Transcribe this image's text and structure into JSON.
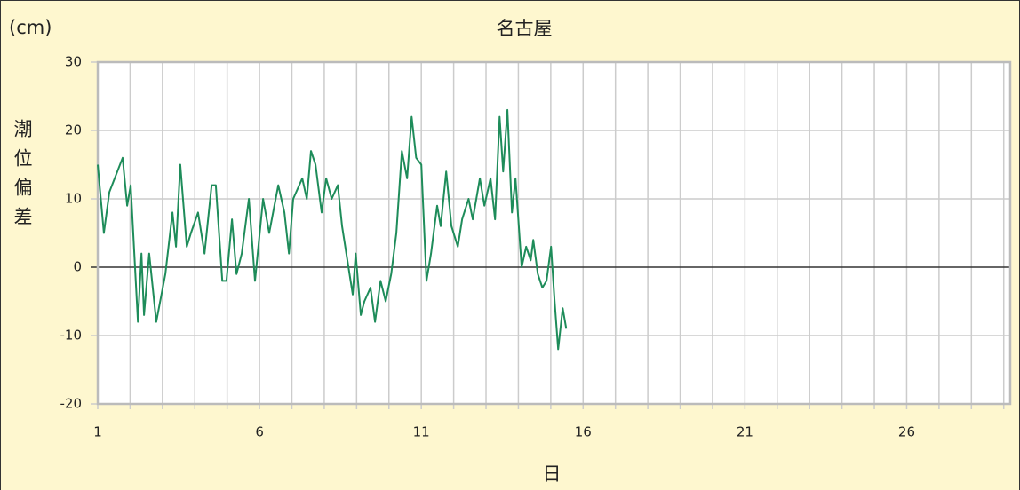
{
  "chart_data": {
    "type": "line",
    "title": "名古屋",
    "y_unit": "(cm)",
    "y_label": "潮位偏差",
    "x_label": "日",
    "x": [
      1,
      1.19,
      1.36,
      1.77,
      1.91,
      2.02,
      2.24,
      2.35,
      2.43,
      2.59,
      2.81,
      3.09,
      3.31,
      3.42,
      3.55,
      3.75,
      3.88,
      4.1,
      4.3,
      4.52,
      4.65,
      4.85,
      4.98,
      5.15,
      5.29,
      5.45,
      5.67,
      5.86,
      6.11,
      6.3,
      6.58,
      6.77,
      6.91,
      7.04,
      7.32,
      7.46,
      7.59,
      7.73,
      7.92,
      8.06,
      8.23,
      8.42,
      8.55,
      8.75,
      8.88,
      8.97,
      9.13,
      9.24,
      9.43,
      9.57,
      9.74,
      9.9,
      10.07,
      10.23,
      10.4,
      10.56,
      10.7,
      10.84,
      11.0,
      11.16,
      11.3,
      11.49,
      11.6,
      11.77,
      11.93,
      12.13,
      12.26,
      12.46,
      12.59,
      12.81,
      12.95,
      13.14,
      13.28,
      13.42,
      13.53,
      13.66,
      13.8,
      13.91,
      14.1,
      14.24,
      14.38,
      14.46,
      14.6,
      14.74,
      14.87,
      15.01,
      15.12,
      15.23,
      15.37,
      15.48
    ],
    "series": [
      {
        "color": "#1e8c5a",
        "values": [
          15,
          5,
          11,
          16,
          9,
          12,
          -8,
          2,
          -7,
          2,
          -8,
          -1,
          8,
          3,
          15,
          3,
          5,
          8,
          2,
          12,
          12,
          -2,
          -2,
          7,
          -1,
          2,
          10,
          -2,
          10,
          5,
          12,
          8,
          2,
          10,
          13,
          10,
          17,
          15,
          8,
          13,
          10,
          12,
          6,
          0,
          -4,
          2,
          -7,
          -5,
          -3,
          -8,
          -2,
          -5,
          -1,
          5,
          17,
          13,
          22,
          16,
          15,
          -2,
          2,
          9,
          6,
          14,
          6,
          3,
          7,
          10,
          7,
          13,
          9,
          13,
          7,
          22,
          14,
          23,
          8,
          13,
          0,
          3,
          1,
          4,
          -1,
          -3,
          -2,
          3,
          -5,
          -12,
          -6,
          -9
        ]
      }
    ],
    "xlim": [
      1,
      29.2
    ],
    "xticks": [
      1,
      6,
      11,
      16,
      21,
      26
    ],
    "xgrid": [
      1,
      2,
      3,
      4,
      5,
      6,
      7,
      8,
      9,
      10,
      11,
      12,
      13,
      14,
      15,
      16,
      17,
      18,
      19,
      20,
      21,
      22,
      23,
      24,
      25,
      26,
      27,
      28,
      29
    ],
    "ylim": [
      -20,
      30
    ],
    "yticks": [
      -20,
      -10,
      0,
      10,
      20,
      30
    ],
    "grid": true
  }
}
